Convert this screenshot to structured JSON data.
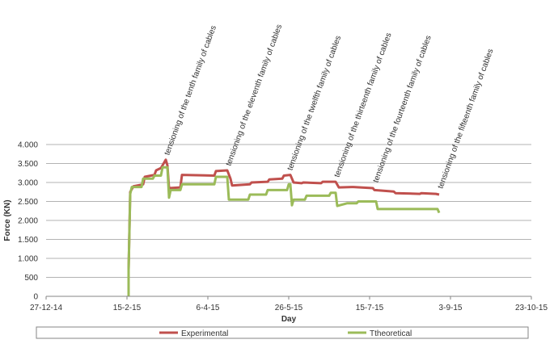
{
  "chart_data": {
    "type": "line",
    "title": "",
    "xlabel": "Day",
    "ylabel": "Force (KN)",
    "x_axis": {
      "type": "date",
      "min": "2014-12-27",
      "max": "2015-10-23",
      "ticks": [
        "2014-12-27",
        "2015-02-15",
        "2015-04-06",
        "2015-05-26",
        "2015-07-15",
        "2015-09-03",
        "2015-10-23"
      ],
      "tick_labels": [
        "27-12-14",
        "15-2-15",
        "6-4-15",
        "26-5-15",
        "15-7-15",
        "3-9-15",
        "23-10-15"
      ]
    },
    "y_axis": {
      "min": 0,
      "max": 4000,
      "ticks": [
        0,
        500,
        1000,
        1500,
        2000,
        2500,
        3000,
        3500,
        4000
      ],
      "tick_labels": [
        "0",
        "500",
        "1.000",
        "1.500",
        "2.000",
        "2.500",
        "3.000",
        "3.500",
        "4.000"
      ],
      "grid": true
    },
    "legend": {
      "position": "bottom"
    },
    "series": [
      {
        "name": "Experimental",
        "color": "#c0504d",
        "points": [
          [
            "2015-02-16",
            0
          ],
          [
            "2015-02-16",
            700
          ],
          [
            "2015-02-17",
            2750
          ],
          [
            "2015-02-19",
            2900
          ],
          [
            "2015-02-25",
            2950
          ],
          [
            "2015-02-26",
            3150
          ],
          [
            "2015-03-04",
            3200
          ],
          [
            "2015-03-05",
            3320
          ],
          [
            "2015-03-08",
            3380
          ],
          [
            "2015-03-09",
            3450
          ],
          [
            "2015-03-11",
            3600
          ],
          [
            "2015-03-12",
            3450
          ],
          [
            "2015-03-13",
            2850
          ],
          [
            "2015-03-20",
            2870
          ],
          [
            "2015-03-21",
            3200
          ],
          [
            "2015-04-10",
            3180
          ],
          [
            "2015-04-11",
            3300
          ],
          [
            "2015-04-18",
            3320
          ],
          [
            "2015-04-20",
            3100
          ],
          [
            "2015-04-21",
            2920
          ],
          [
            "2015-05-02",
            2950
          ],
          [
            "2015-05-03",
            3000
          ],
          [
            "2015-05-13",
            3020
          ],
          [
            "2015-05-14",
            3080
          ],
          [
            "2015-05-22",
            3100
          ],
          [
            "2015-05-23",
            3180
          ],
          [
            "2015-05-27",
            3200
          ],
          [
            "2015-05-29",
            3000
          ],
          [
            "2015-06-03",
            2980
          ],
          [
            "2015-06-04",
            3000
          ],
          [
            "2015-06-15",
            2980
          ],
          [
            "2015-06-16",
            3020
          ],
          [
            "2015-06-24",
            3020
          ],
          [
            "2015-06-26",
            2870
          ],
          [
            "2015-07-04",
            2880
          ],
          [
            "2015-07-05",
            2880
          ],
          [
            "2015-07-17",
            2850
          ],
          [
            "2015-07-18",
            2800
          ],
          [
            "2015-07-30",
            2760
          ],
          [
            "2015-07-31",
            2720
          ],
          [
            "2015-08-15",
            2700
          ],
          [
            "2015-08-16",
            2720
          ],
          [
            "2015-08-25",
            2700
          ],
          [
            "2015-08-27",
            2680
          ]
        ]
      },
      {
        "name": "Ttheoretical",
        "color": "#9bbb59",
        "points": [
          [
            "2015-02-16",
            0
          ],
          [
            "2015-02-16",
            700
          ],
          [
            "2015-02-17",
            2700
          ],
          [
            "2015-02-18",
            2880
          ],
          [
            "2015-02-24",
            2880
          ],
          [
            "2015-02-25",
            3100
          ],
          [
            "2015-03-03",
            3100
          ],
          [
            "2015-03-04",
            3180
          ],
          [
            "2015-03-08",
            3180
          ],
          [
            "2015-03-09",
            3400
          ],
          [
            "2015-03-12",
            3400
          ],
          [
            "2015-03-13",
            2600
          ],
          [
            "2015-03-14",
            2800
          ],
          [
            "2015-03-20",
            2800
          ],
          [
            "2015-03-21",
            2950
          ],
          [
            "2015-04-10",
            2950
          ],
          [
            "2015-04-11",
            3150
          ],
          [
            "2015-04-18",
            3150
          ],
          [
            "2015-04-19",
            2550
          ],
          [
            "2015-05-01",
            2550
          ],
          [
            "2015-05-02",
            2680
          ],
          [
            "2015-05-12",
            2680
          ],
          [
            "2015-05-13",
            2800
          ],
          [
            "2015-05-25",
            2800
          ],
          [
            "2015-05-26",
            2950
          ],
          [
            "2015-05-27",
            2950
          ],
          [
            "2015-05-28",
            2400
          ],
          [
            "2015-05-29",
            2550
          ],
          [
            "2015-06-05",
            2550
          ],
          [
            "2015-06-06",
            2650
          ],
          [
            "2015-06-20",
            2650
          ],
          [
            "2015-06-21",
            2730
          ],
          [
            "2015-06-24",
            2730
          ],
          [
            "2015-06-25",
            2380
          ],
          [
            "2015-07-01",
            2450
          ],
          [
            "2015-07-07",
            2450
          ],
          [
            "2015-07-08",
            2500
          ],
          [
            "2015-07-19",
            2500
          ],
          [
            "2015-07-20",
            2300
          ],
          [
            "2015-08-26",
            2300
          ],
          [
            "2015-08-27",
            2200
          ]
        ]
      }
    ],
    "annotations": [
      {
        "text": "tensioning of the tenth family of cables",
        "date": "2015-03-11",
        "value": 3600
      },
      {
        "text": "tensioning of the eleventh family of cables",
        "date": "2015-04-18",
        "value": 3320
      },
      {
        "text": "tensioning of the twelfth family of cables",
        "date": "2015-05-26",
        "value": 3200
      },
      {
        "text": "tensioning of the thirteenth family of cables",
        "date": "2015-06-24",
        "value": 3020
      },
      {
        "text": "tensioning of the fourteenth family of cables",
        "date": "2015-07-18",
        "value": 2880
      },
      {
        "text": "tensioning of the fifteenth family of cables",
        "date": "2015-08-27",
        "value": 2720
      }
    ]
  }
}
